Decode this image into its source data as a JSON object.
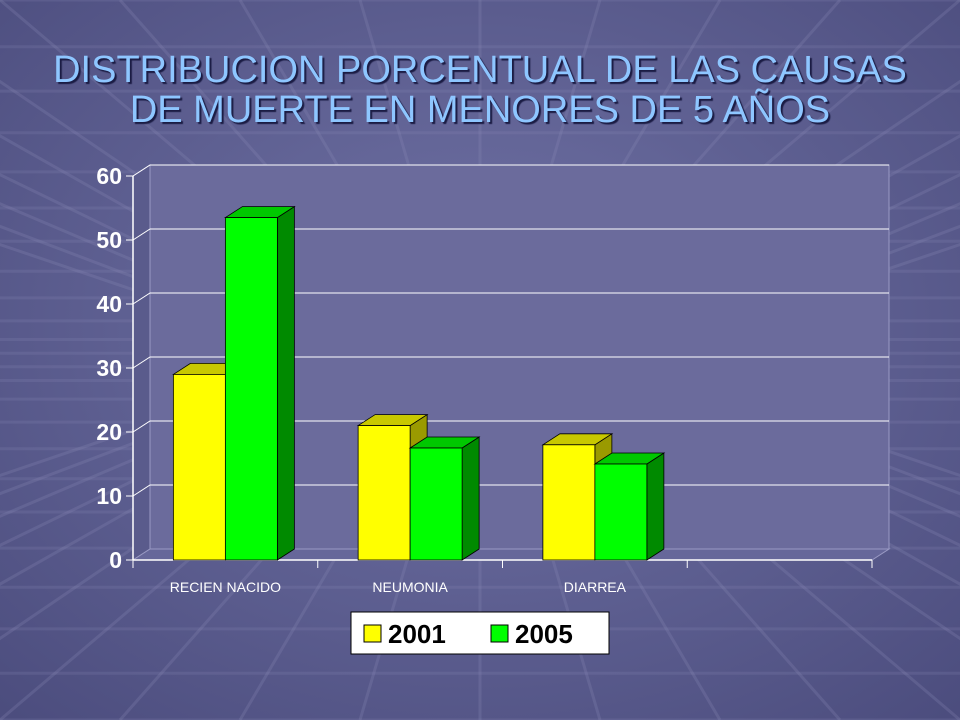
{
  "slide": {
    "title_lines": [
      "DISTRIBUCION PORCENTUAL DE LAS CAUSAS",
      "DE MUERTE EN MENORES DE 5 AÑOS"
    ]
  },
  "chart_data": {
    "type": "bar",
    "title": "DISTRIBUCION PORCENTUAL DE LAS CAUSAS DE MUERTE EN MENORES DE 5 AÑOS",
    "categories": [
      "RECIEN NACIDO",
      "NEUMONIA",
      "DIARREA"
    ],
    "series": [
      {
        "name": "2001",
        "values": [
          29,
          21,
          18
        ],
        "color": "#ffff00"
      },
      {
        "name": "2005",
        "values": [
          53.5,
          17.5,
          15
        ],
        "color": "#00ff00"
      }
    ],
    "ylim": [
      0,
      60
    ],
    "yticks": [
      0,
      10,
      20,
      30,
      40,
      50,
      60
    ],
    "grid": true,
    "legend_position": "bottom",
    "plot_background": "#6b6b9c"
  }
}
